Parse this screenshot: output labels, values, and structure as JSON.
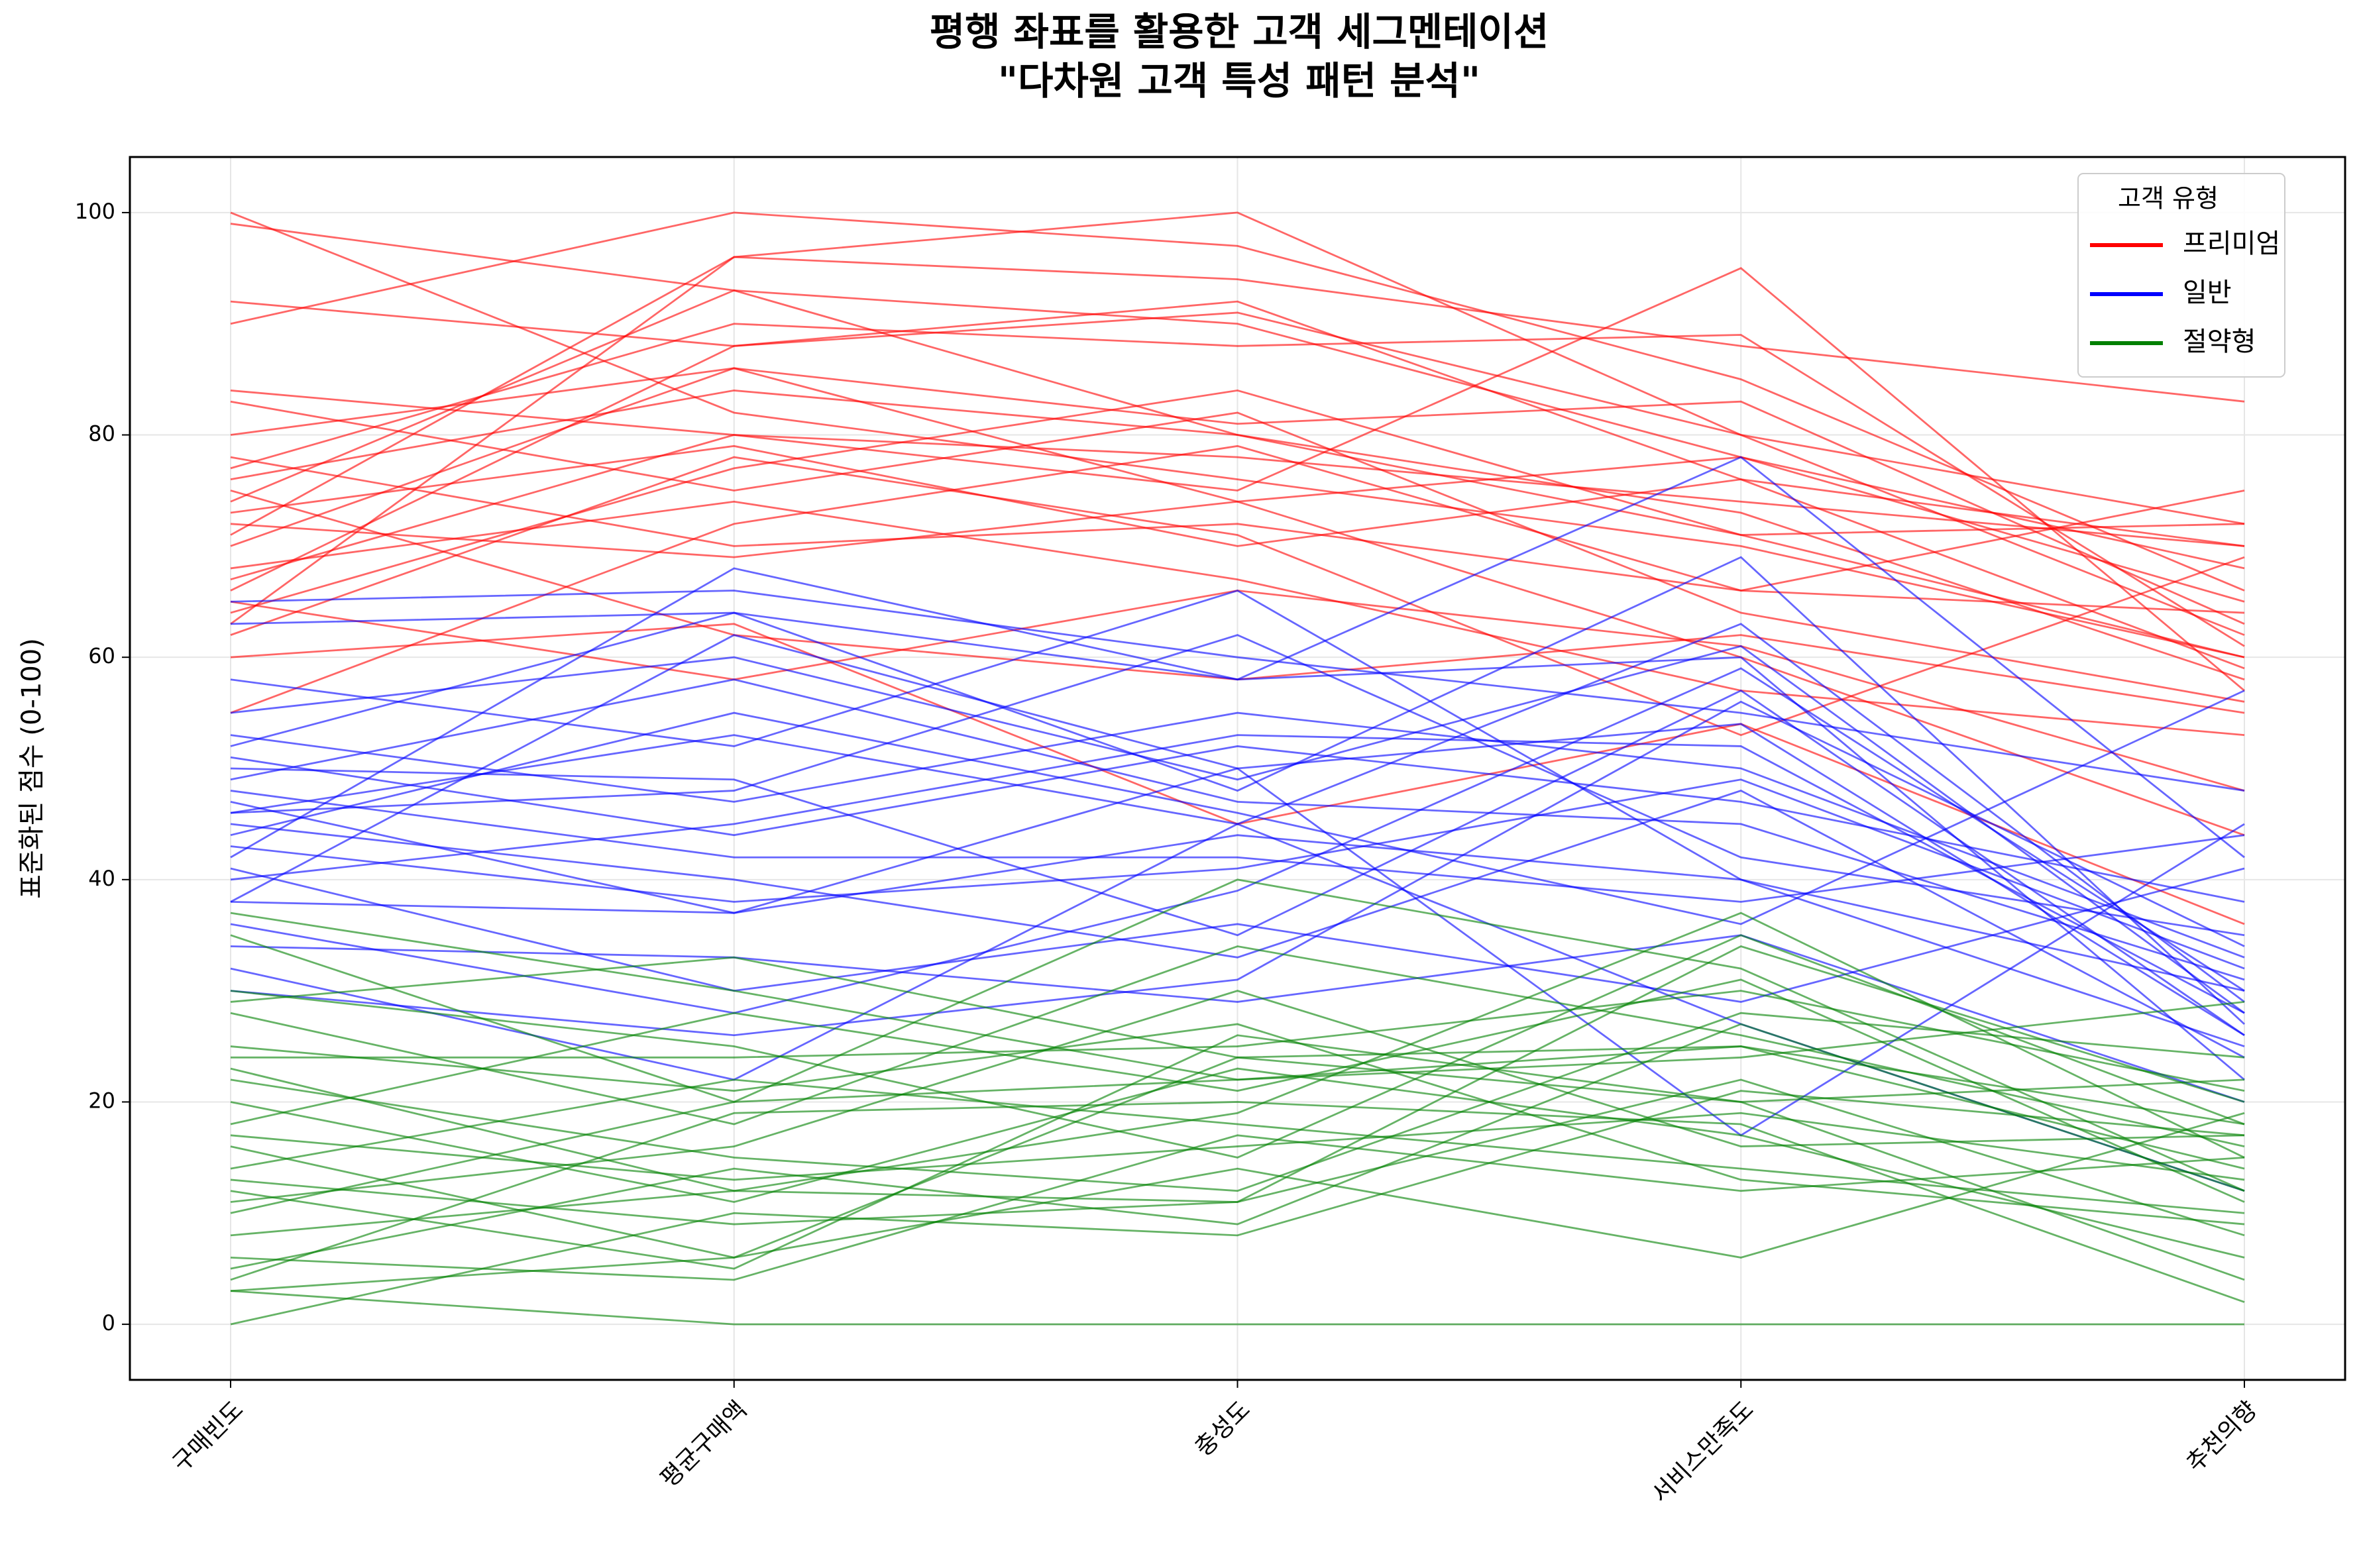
{
  "chart_data": {
    "type": "parallel",
    "title": "평행 좌표를 활용한 고객 세그멘테이션",
    "subtitle": "\"다차원 고객 특성 패턴 분석\"",
    "y_label": "표준화된 점수 (0-100)",
    "categories": [
      "구매빈도",
      "평균구매액",
      "충성도",
      "서비스만족도",
      "추천의향"
    ],
    "ylim": [
      -5,
      105
    ],
    "yticks": [
      0,
      20,
      40,
      60,
      80,
      100
    ],
    "grid": true,
    "legend_title": "고객 유형",
    "legend_position": "upper right",
    "series": [
      {
        "name": "프리미엄",
        "color": "#ff0000",
        "values": [
          [
            100,
            82,
            76,
            70,
            60
          ],
          [
            99,
            93,
            80,
            73,
            58
          ],
          [
            92,
            88,
            91,
            80,
            62
          ],
          [
            90,
            100,
            97,
            85,
            66
          ],
          [
            84,
            80,
            78,
            74,
            70
          ],
          [
            83,
            75,
            82,
            64,
            56
          ],
          [
            80,
            86,
            74,
            78,
            68
          ],
          [
            78,
            70,
            72,
            66,
            64
          ],
          [
            77,
            90,
            88,
            89,
            61
          ],
          [
            76,
            84,
            80,
            71,
            72
          ],
          [
            75,
            62,
            58,
            62,
            55
          ],
          [
            74,
            93,
            90,
            78,
            65
          ],
          [
            73,
            79,
            70,
            76,
            59
          ],
          [
            72,
            69,
            74,
            60,
            44
          ],
          [
            71,
            96,
            100,
            80,
            72
          ],
          [
            70,
            86,
            81,
            83,
            63
          ],
          [
            68,
            74,
            67,
            57,
            53
          ],
          [
            67,
            80,
            75,
            95,
            57
          ],
          [
            66,
            88,
            92,
            76,
            70
          ],
          [
            65,
            58,
            66,
            61,
            48
          ],
          [
            64,
            77,
            84,
            71,
            60
          ],
          [
            63,
            96,
            94,
            88,
            83
          ],
          [
            62,
            78,
            71,
            53,
            69
          ],
          [
            60,
            63,
            45,
            54,
            36
          ],
          [
            55,
            72,
            79,
            66,
            75
          ]
        ]
      },
      {
        "name": "일반",
        "color": "#0000ff",
        "values": [
          [
            65,
            66,
            60,
            55,
            48
          ],
          [
            63,
            64,
            58,
            78,
            42
          ],
          [
            58,
            52,
            66,
            40,
            30
          ],
          [
            55,
            60,
            49,
            61,
            28
          ],
          [
            53,
            47,
            55,
            50,
            33
          ],
          [
            52,
            64,
            48,
            69,
            27
          ],
          [
            51,
            44,
            52,
            47,
            38
          ],
          [
            50,
            49,
            35,
            57,
            26
          ],
          [
            49,
            58,
            47,
            45,
            31
          ],
          [
            48,
            42,
            42,
            38,
            44
          ],
          [
            47,
            37,
            50,
            54,
            26
          ],
          [
            46,
            53,
            45,
            63,
            29
          ],
          [
            46,
            48,
            62,
            42,
            35
          ],
          [
            45,
            40,
            33,
            48,
            24
          ],
          [
            44,
            55,
            46,
            36,
            57
          ],
          [
            43,
            38,
            41,
            49,
            32
          ],
          [
            42,
            68,
            58,
            60,
            22
          ],
          [
            41,
            30,
            36,
            29,
            41
          ],
          [
            40,
            45,
            53,
            52,
            28
          ],
          [
            38,
            37,
            44,
            40,
            25
          ],
          [
            38,
            62,
            50,
            17,
            45
          ],
          [
            36,
            28,
            39,
            59,
            30
          ],
          [
            34,
            33,
            29,
            35,
            20
          ],
          [
            32,
            22,
            45,
            27,
            12
          ],
          [
            30,
            26,
            31,
            56,
            34
          ]
        ]
      },
      {
        "name": "절약형",
        "color": "#008000",
        "values": [
          [
            37,
            30,
            22,
            25,
            14
          ],
          [
            35,
            20,
            40,
            32,
            12
          ],
          [
            30,
            25,
            15,
            35,
            18
          ],
          [
            29,
            33,
            24,
            20,
            22
          ],
          [
            28,
            18,
            34,
            26,
            16
          ],
          [
            25,
            21,
            27,
            13,
            9
          ],
          [
            24,
            24,
            25,
            30,
            21
          ],
          [
            23,
            12,
            19,
            37,
            15
          ],
          [
            22,
            15,
            12,
            28,
            24
          ],
          [
            20,
            11,
            23,
            17,
            6
          ],
          [
            18,
            28,
            21,
            31,
            11
          ],
          [
            17,
            13,
            16,
            19,
            13
          ],
          [
            16,
            6,
            24,
            25,
            18
          ],
          [
            14,
            22,
            18,
            14,
            10
          ],
          [
            13,
            9,
            11,
            34,
            20
          ],
          [
            12,
            5,
            26,
            20,
            4
          ],
          [
            11,
            16,
            30,
            16,
            17
          ],
          [
            10,
            20,
            22,
            24,
            29
          ],
          [
            8,
            12,
            11,
            22,
            8
          ],
          [
            6,
            4,
            17,
            12,
            15
          ],
          [
            5,
            14,
            9,
            27,
            12
          ],
          [
            4,
            19,
            20,
            18,
            2
          ],
          [
            3,
            0,
            0,
            0,
            0
          ],
          [
            3,
            6,
            14,
            6,
            19
          ],
          [
            0,
            10,
            8,
            21,
            17
          ]
        ]
      }
    ]
  }
}
